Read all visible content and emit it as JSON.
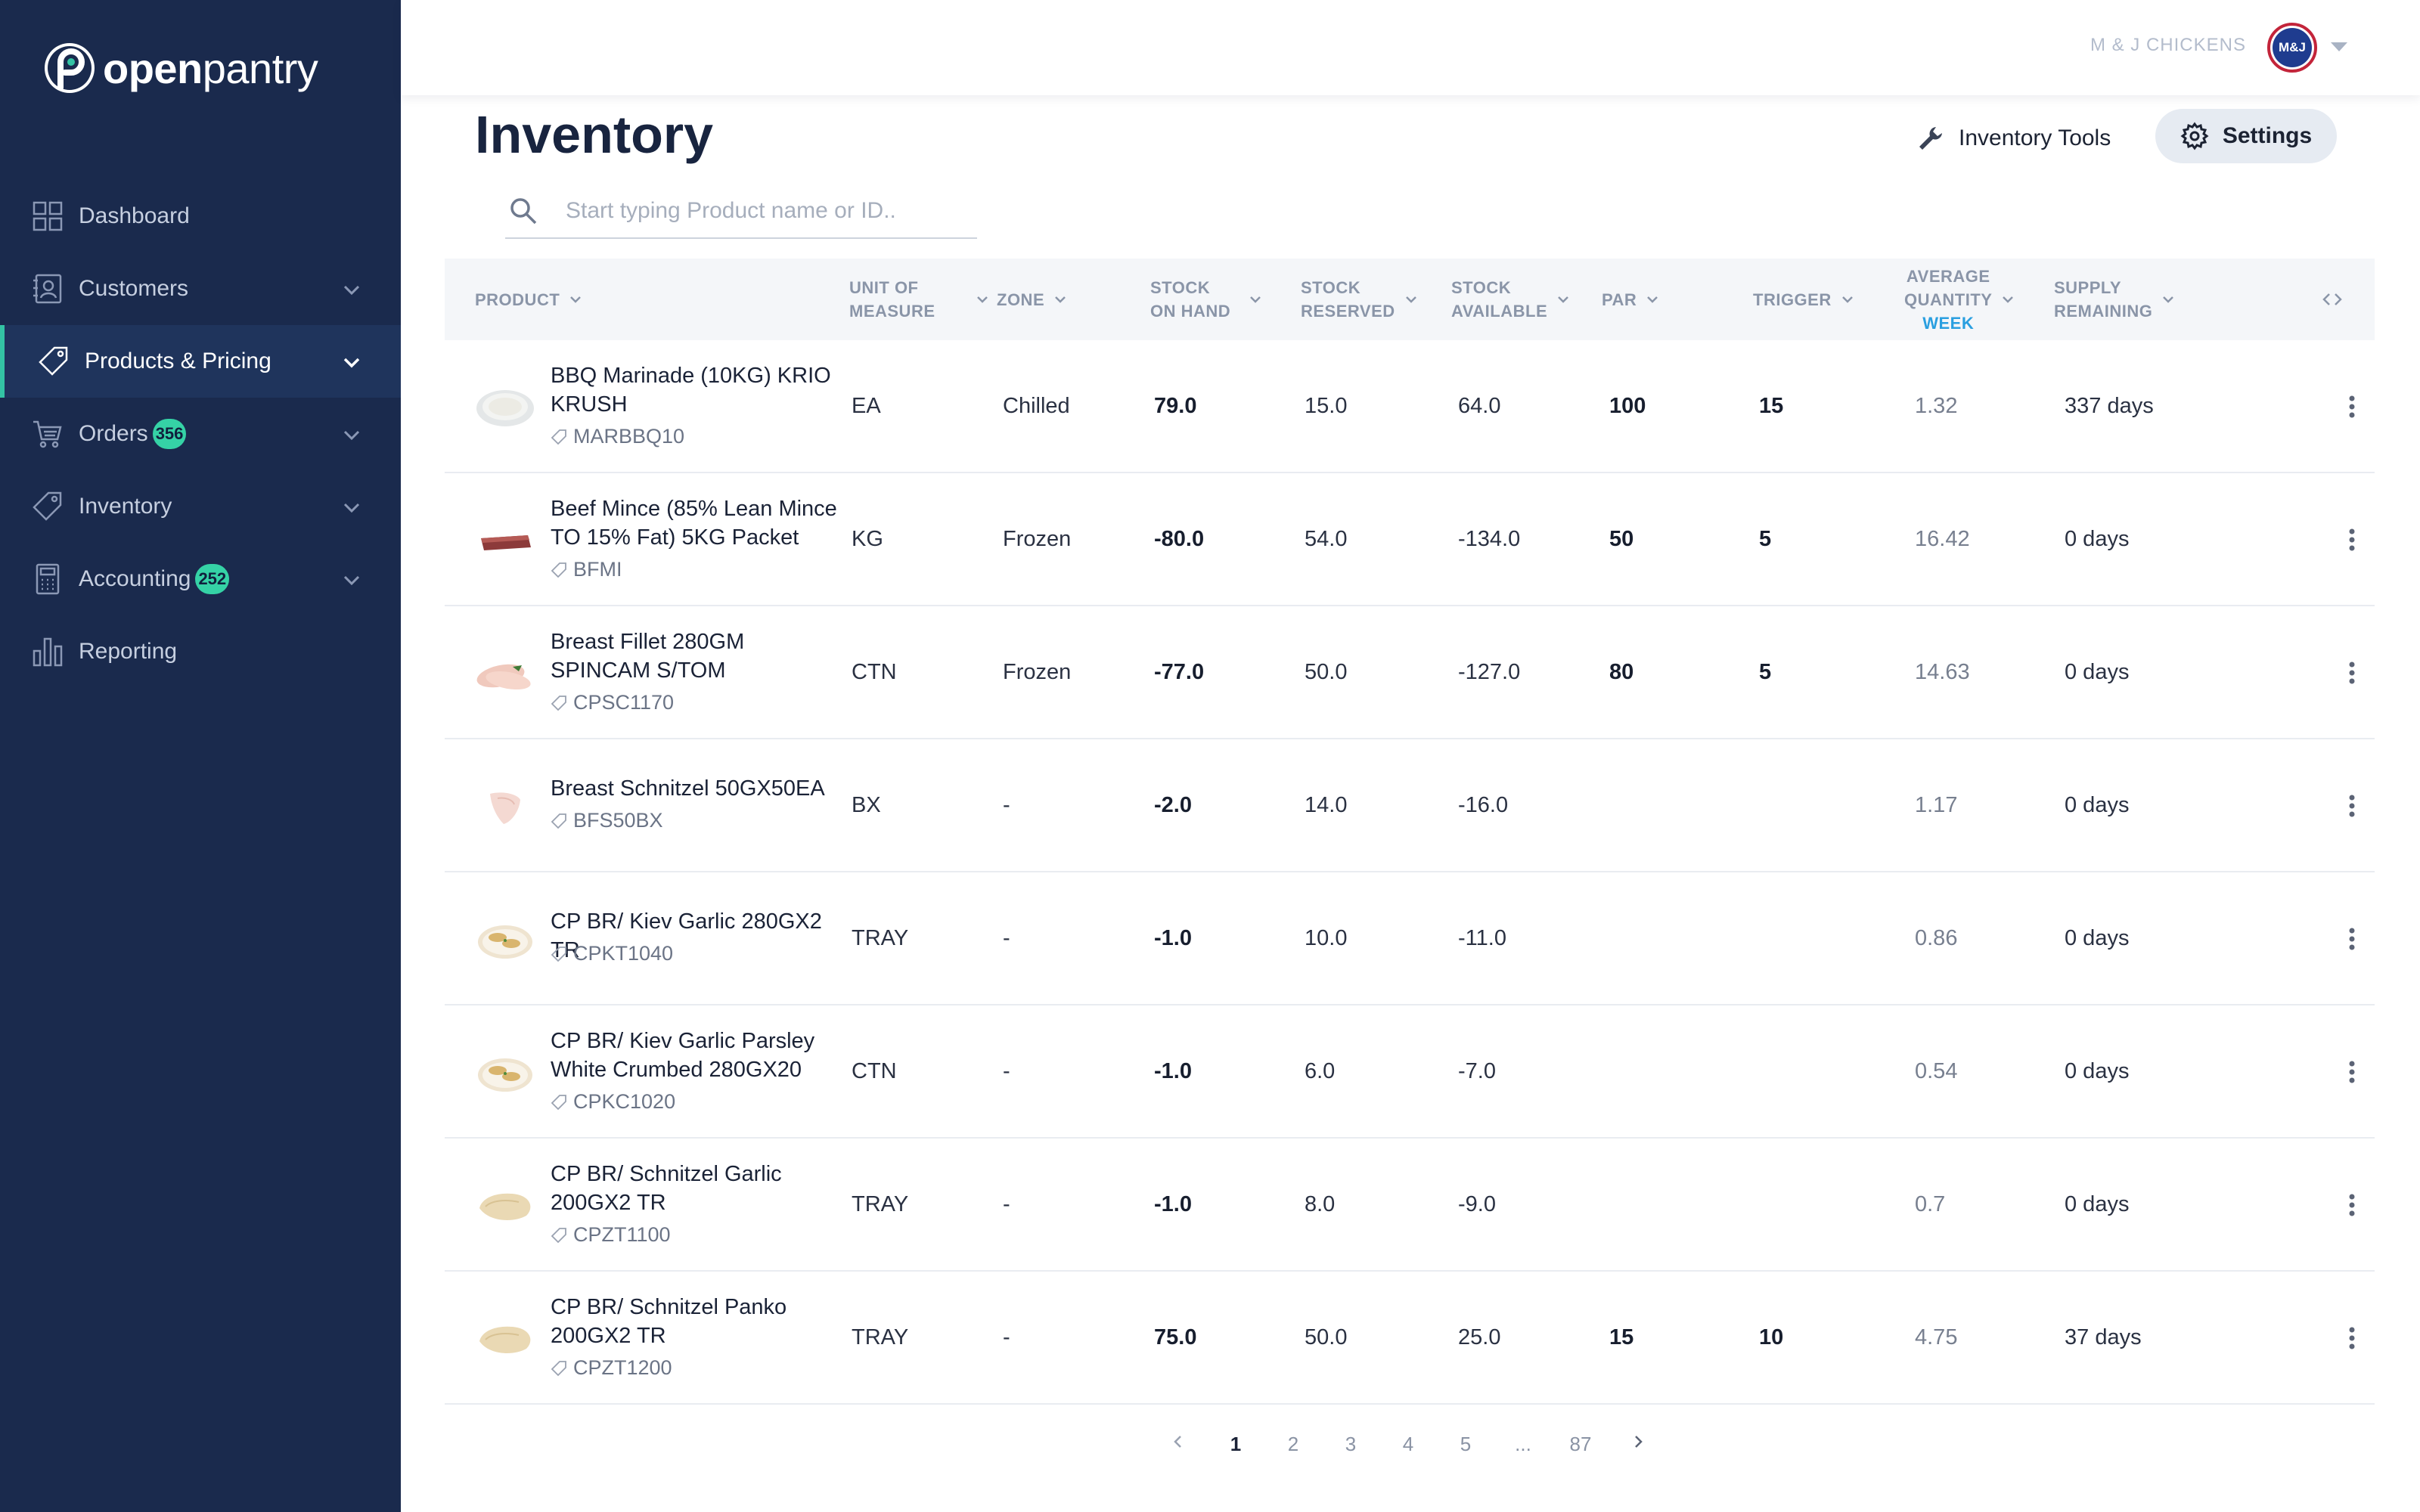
{
  "app": {
    "logo_bold": "open",
    "logo_light": "pantry"
  },
  "sidebar": {
    "items": [
      {
        "label": "Dashboard",
        "icon": "grid-icon",
        "has_chevron": false
      },
      {
        "label": "Customers",
        "icon": "contact-book-icon",
        "has_chevron": true
      },
      {
        "label": "Products & Pricing",
        "icon": "tag-icon",
        "has_chevron": true,
        "active": true
      },
      {
        "label": "Orders",
        "icon": "cart-icon",
        "has_chevron": true,
        "badge": "356"
      },
      {
        "label": "Inventory",
        "icon": "tag-icon",
        "has_chevron": true
      },
      {
        "label": "Accounting",
        "icon": "calculator-icon",
        "has_chevron": true,
        "badge": "252"
      },
      {
        "label": "Reporting",
        "icon": "bar-chart-icon",
        "has_chevron": false
      }
    ]
  },
  "topbar": {
    "company": "M & J CHICKENS",
    "avatar_text": "M&J"
  },
  "page": {
    "title": "Inventory",
    "tools_label": "Inventory Tools",
    "settings_label": "Settings",
    "search_placeholder": "Start typing Product name or ID.."
  },
  "table": {
    "headers": {
      "product": "PRODUCT",
      "uom_1": "UNIT OF",
      "uom_2": "MEASURE",
      "zone": "ZONE",
      "onhand_1": "STOCK",
      "onhand_2": "ON HAND",
      "reserved_1": "STOCK",
      "reserved_2": "RESERVED",
      "available_1": "STOCK",
      "available_2": "AVAILABLE",
      "par": "PAR",
      "trigger": "TRIGGER",
      "avg_1": "AVERAGE",
      "avg_2": "QUANTITY",
      "avg_3": "WEEK",
      "supply_1": "SUPPLY",
      "supply_2": "REMAINING"
    },
    "rows": [
      {
        "name_1": "BBQ Marinade (10KG) KRIO",
        "name_2": "KRUSH",
        "code": "MARBBQ10",
        "uom": "EA",
        "zone": "Chilled",
        "on_hand": "79.0",
        "reserved": "15.0",
        "available": "64.0",
        "par": "100",
        "trigger": "15",
        "avg": "1.32",
        "supply": "337 days",
        "thumb": "marinade"
      },
      {
        "name_1": "Beef Mince (85% Lean Mince",
        "name_2": "TO 15% Fat) 5KG Packet",
        "code": "BFMI",
        "uom": "KG",
        "zone": "Frozen",
        "on_hand": "-80.0",
        "reserved": "54.0",
        "available": "-134.0",
        "par": "50",
        "trigger": "5",
        "avg": "16.42",
        "supply": "0 days",
        "thumb": "beef"
      },
      {
        "name_1": "Breast Fillet 280GM",
        "name_2": "SPINCAM S/TOM",
        "code": "CPSC1170",
        "uom": "CTN",
        "zone": "Frozen",
        "on_hand": "-77.0",
        "reserved": "50.0",
        "available": "-127.0",
        "par": "80",
        "trigger": "5",
        "avg": "14.63",
        "supply": "0 days",
        "thumb": "fillet"
      },
      {
        "name_1": "Breast Schnitzel 50GX50EA",
        "name_2": "",
        "code": "BFS50BX",
        "uom": "BX",
        "zone": "-",
        "on_hand": "-2.0",
        "reserved": "14.0",
        "available": "-16.0",
        "par": "",
        "trigger": "",
        "avg": "1.17",
        "supply": "0 days",
        "thumb": "raw"
      },
      {
        "name_1": "CP BR/ Kiev Garlic 280GX2 TR",
        "name_2": "",
        "code": "CPKT1040",
        "uom": "TRAY",
        "zone": "-",
        "on_hand": "-1.0",
        "reserved": "10.0",
        "available": "-11.0",
        "par": "",
        "trigger": "",
        "avg": "0.86",
        "supply": "0 days",
        "thumb": "kiev"
      },
      {
        "name_1": "CP BR/ Kiev Garlic Parsley",
        "name_2": "White Crumbed 280GX20",
        "code": "CPKC1020",
        "uom": "CTN",
        "zone": "-",
        "on_hand": "-1.0",
        "reserved": "6.0",
        "available": "-7.0",
        "par": "",
        "trigger": "",
        "avg": "0.54",
        "supply": "0 days",
        "thumb": "kiev"
      },
      {
        "name_1": "CP BR/ Schnitzel Garlic",
        "name_2": "200GX2 TR",
        "code": "CPZT1100",
        "uom": "TRAY",
        "zone": "-",
        "on_hand": "-1.0",
        "reserved": "8.0",
        "available": "-9.0",
        "par": "",
        "trigger": "",
        "avg": "0.7",
        "supply": "0 days",
        "thumb": "schnitzel"
      },
      {
        "name_1": "CP BR/ Schnitzel Panko",
        "name_2": "200GX2 TR",
        "code": "CPZT1200",
        "uom": "TRAY",
        "zone": "-",
        "on_hand": "75.0",
        "reserved": "50.0",
        "available": "25.0",
        "par": "15",
        "trigger": "10",
        "avg": "4.75",
        "supply": "37 days",
        "thumb": "schnitzel"
      }
    ]
  },
  "pagination": {
    "pages": [
      "1",
      "2",
      "3",
      "4",
      "5",
      "...",
      "87"
    ],
    "current": "1"
  },
  "colors": {
    "sidebar_bg": "#1a2a4d",
    "accent": "#33c3a4",
    "badge": "#35d2a6",
    "week_link": "#2a9fe0"
  }
}
